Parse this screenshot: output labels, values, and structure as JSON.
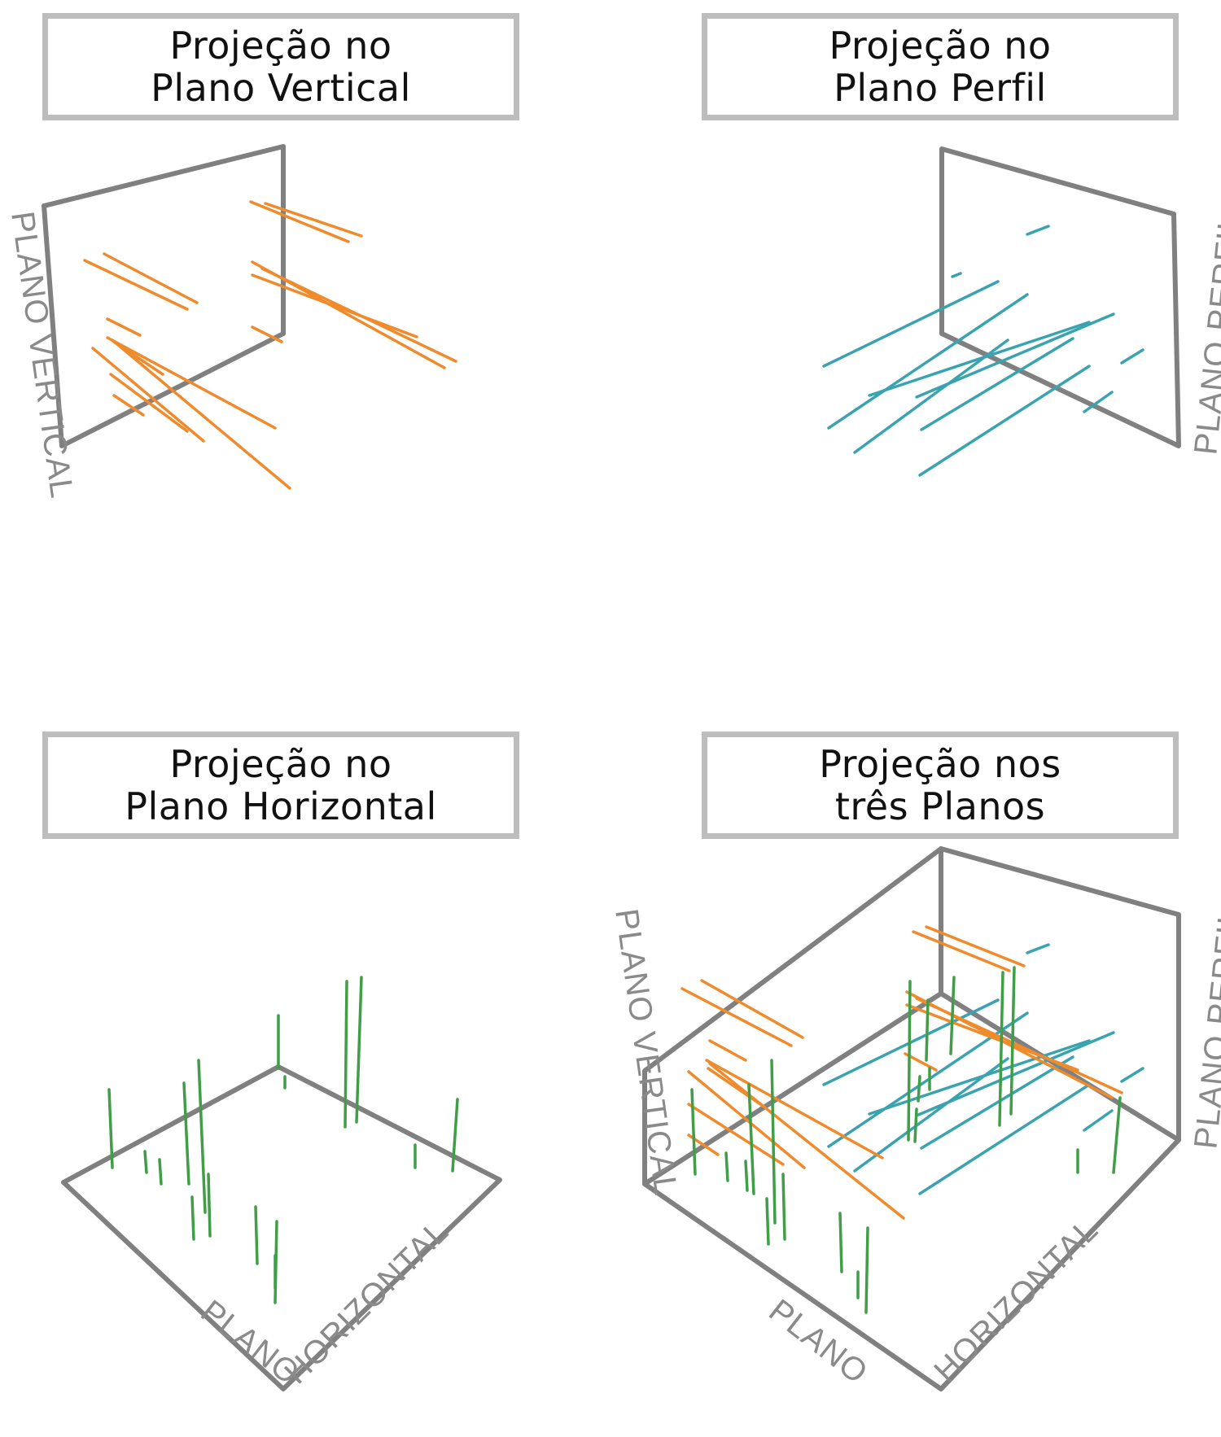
{
  "panels": [
    {
      "title": [
        "Projeção no",
        "Plano Vertical"
      ],
      "labels": {
        "vertical": "PLANO VERTICAL"
      }
    },
    {
      "title": [
        "Projeção no",
        "Plano Perfil"
      ],
      "labels": {
        "profile": "PLANO PERFIL"
      }
    },
    {
      "title": [
        "Projeção no",
        "Plano Horizontal"
      ],
      "labels": {
        "horizontal_a": "PLANO",
        "horizontal_b": "HORIZONTAL"
      }
    },
    {
      "title": [
        "Projeção nos",
        "três Planos"
      ],
      "labels": {
        "vertical": "PLANO VERTICAL",
        "profile": "PLANO PERFIL",
        "horizontal_a": "PLANO",
        "horizontal_b": "HORIZONTAL"
      }
    }
  ],
  "colors": {
    "vertical_projection": "#ef8b2c",
    "profile_projection": "#3aa3b0",
    "horizontal_projection": "#3f9e47",
    "planes": "#808080",
    "title_border": "#bdbdbd"
  }
}
